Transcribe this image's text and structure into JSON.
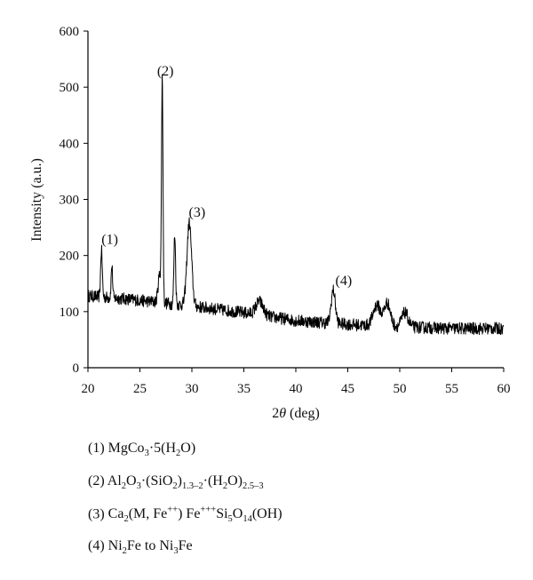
{
  "chart_data": {
    "type": "line",
    "xlabel_prefix": "2",
    "xlabel_symbol": "θ",
    "xlabel_suffix": " (deg)",
    "ylabel": "Intensity (a.u.)",
    "xlim": [
      20,
      60
    ],
    "ylim": [
      0,
      600
    ],
    "x_ticks": [
      "20",
      "25",
      "30",
      "35",
      "40",
      "45",
      "50",
      "55",
      "60"
    ],
    "y_ticks": [
      "0",
      "100",
      "200",
      "300",
      "400",
      "500",
      "600"
    ],
    "grid": false,
    "background": {
      "points": [
        [
          20,
          128
        ],
        [
          24,
          122
        ],
        [
          26,
          118
        ],
        [
          30,
          110
        ],
        [
          35,
          98
        ],
        [
          40,
          84
        ],
        [
          43,
          80
        ],
        [
          46,
          76
        ],
        [
          50,
          73
        ],
        [
          55,
          70
        ],
        [
          60,
          70
        ]
      ],
      "noise_amplitude": 11
    },
    "features": [
      {
        "x": 21.3,
        "y": 210,
        "width": 0.08
      },
      {
        "x": 22.3,
        "y": 182,
        "width": 0.07
      },
      {
        "x": 26.9,
        "y": 165,
        "width": 0.15
      },
      {
        "x": 27.15,
        "y": 508,
        "width": 0.07
      },
      {
        "x": 28.35,
        "y": 238,
        "width": 0.08
      },
      {
        "x": 29.75,
        "y": 258,
        "width": 0.22
      },
      {
        "x": 36.5,
        "y": 118,
        "width": 0.35
      },
      {
        "x": 43.6,
        "y": 138,
        "width": 0.2
      },
      {
        "x": 47.8,
        "y": 112,
        "width": 0.35
      },
      {
        "x": 48.8,
        "y": 115,
        "width": 0.3
      },
      {
        "x": 50.5,
        "y": 98,
        "width": 0.3
      }
    ],
    "peak_labels": [
      {
        "text": "(1)",
        "x": 22.1,
        "y": 221
      },
      {
        "text": "(2)",
        "x": 27.45,
        "y": 521
      },
      {
        "text": "(3)",
        "x": 30.5,
        "y": 269
      },
      {
        "text": "(4)",
        "x": 44.6,
        "y": 147
      }
    ]
  },
  "legend": [
    {
      "idx": "(1)",
      "formula": "MgCo3·5(H2O)"
    },
    {
      "idx": "(2)",
      "formula": "Al2O3·(SiO2)1.3–2·(H2O)2.5–3"
    },
    {
      "idx": "(3)",
      "formula": "Ca2(M, Fe++) Fe+++Si5O14(OH)"
    },
    {
      "idx": "(4)",
      "formula": "Ni2Fe to Ni3Fe"
    }
  ],
  "colors": {
    "line": "#000000",
    "axis": "#000000",
    "background": "#ffffff"
  }
}
